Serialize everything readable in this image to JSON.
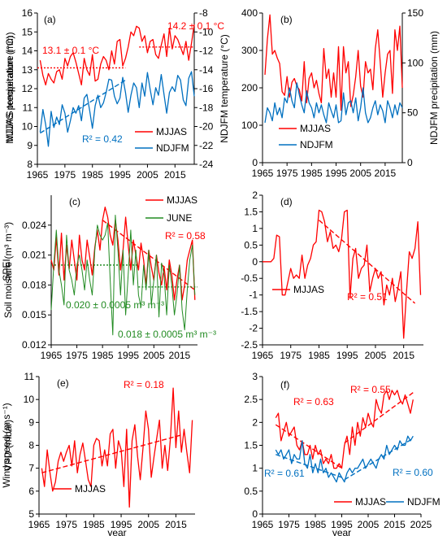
{
  "colors": {
    "red": "#ff0000",
    "blue": "#0070c0",
    "green": "#228b22",
    "axis": "#000000"
  },
  "chart_data": [
    {
      "id": "a",
      "type": "line",
      "panel_label": "(a)",
      "xlabel": "",
      "ylabel": "MJJAS temperature (°C)",
      "ylabel_right": "NDJFM temperature (°C)",
      "xlim": [
        1965,
        2022
      ],
      "ylim": [
        8,
        16
      ],
      "ylim_right": [
        -24,
        -8
      ],
      "xticks": [
        1965,
        1975,
        1985,
        1995,
        2005,
        2015
      ],
      "yticks": [
        8,
        9,
        10,
        11,
        12,
        13,
        14,
        15,
        16
      ],
      "yticks_right": [
        -24,
        -22,
        -20,
        -18,
        -16,
        -14,
        -12,
        -10,
        -8
      ],
      "legend": [
        "MJJAS",
        "NDJFM"
      ],
      "legend_position": "bottom-right",
      "annotations": [
        {
          "text": "13.1 ± 0.1 °C",
          "color": "red"
        },
        {
          "text": "14.2 ± 0.1 °C",
          "color": "red"
        },
        {
          "text": "R² = 0.42",
          "color": "blue"
        }
      ],
      "series": [
        {
          "name": "MJJAS",
          "axis": "left",
          "color": "red",
          "start": 1966,
          "values": [
            13.5,
            12.7,
            12.2,
            12.8,
            12.5,
            12.3,
            12.9,
            13.0,
            12.5,
            13.6,
            13.2,
            13.7,
            13.9,
            13.4,
            12.8,
            12.2,
            13.6,
            13.0,
            12.7,
            13.8,
            12.4,
            12.5,
            13.3,
            13.7,
            13.5,
            13.0,
            14.0,
            13.3,
            14.5,
            14.6,
            13.2,
            13.6,
            14.2,
            15.0,
            14.8,
            15.3,
            15.2,
            14.5,
            14.8,
            13.9,
            14.5,
            14.6,
            13.8,
            13.6,
            14.3,
            14.9,
            13.7,
            15.2,
            14.1,
            14.8,
            14.6,
            14.2,
            13.8,
            14.5,
            13.5,
            14.4,
            15.4
          ]
        },
        {
          "name": "NDJFM",
          "axis": "right",
          "color": "blue",
          "start": 1966,
          "values": [
            -20.6,
            -18.2,
            -19.8,
            -22.1,
            -18.4,
            -20.1,
            -19.0,
            -19.8,
            -17.7,
            -18.6,
            -20.6,
            -19.4,
            -18.0,
            -18.6,
            -17.8,
            -19.4,
            -17.0,
            -16.6,
            -18.3,
            -20.2,
            -17.8,
            -16.7,
            -18.0,
            -17.5,
            -16.4,
            -15.0,
            -15.1,
            -16.8,
            -17.6,
            -17.0,
            -14.8,
            -16.4,
            -18.5,
            -16.7,
            -15.4,
            -15.9,
            -18.0,
            -15.4,
            -16.8,
            -14.3,
            -16.1,
            -17.7,
            -15.9,
            -16.7,
            -14.5,
            -16.6,
            -18.6,
            -16.4,
            -15.8,
            -16.3,
            -14.6,
            -15.1,
            -17.2,
            -17.8,
            -14.9,
            -14.2,
            -16.8
          ]
        }
      ],
      "lines": [
        {
          "kind": "mean",
          "color": "red",
          "style": "dotted",
          "axis": "left",
          "x": [
            1965,
            1997
          ],
          "y": [
            13.1,
            13.1
          ]
        },
        {
          "kind": "mean",
          "color": "red",
          "style": "dotted",
          "axis": "left",
          "x": [
            2002,
            2022
          ],
          "y": [
            14.2,
            14.2
          ]
        },
        {
          "kind": "trend",
          "color": "blue",
          "style": "dashed",
          "axis": "right",
          "x": [
            1966,
            1997
          ],
          "y": [
            -20.7,
            -15.1
          ]
        }
      ]
    },
    {
      "id": "b",
      "type": "line",
      "panel_label": "(b)",
      "xlabel": "",
      "ylabel": "MJJAS precipitation (mm)",
      "ylabel_right": "NDJFM precipitation (mm)",
      "xlim": [
        1965,
        2022
      ],
      "ylim": [
        0,
        400
      ],
      "ylim_right": [
        0,
        150
      ],
      "xticks": [
        1965,
        1975,
        1985,
        1995,
        2005,
        2015
      ],
      "yticks": [
        0,
        100,
        200,
        300,
        400
      ],
      "yticks_right": [
        0,
        50,
        100,
        150
      ],
      "legend": [
        "MJJAS",
        "NDJFM"
      ],
      "legend_position": "bottom-left",
      "annotations": [],
      "series": [
        {
          "name": "MJJAS",
          "axis": "left",
          "color": "red",
          "start": 1966,
          "values": [
            235,
            330,
            395,
            290,
            300,
            280,
            265,
            190,
            180,
            230,
            175,
            215,
            225,
            205,
            195,
            165,
            270,
            160,
            225,
            240,
            200,
            220,
            185,
            160,
            305,
            225,
            250,
            175,
            240,
            175,
            310,
            140,
            310,
            240,
            270,
            150,
            180,
            230,
            300,
            205,
            175,
            270,
            240,
            250,
            195,
            305,
            355,
            270,
            175,
            240,
            290,
            300,
            185,
            355,
            300,
            365,
            200
          ]
        },
        {
          "name": "NDJFM",
          "axis": "right",
          "color": "blue",
          "start": 1966,
          "values": [
            40,
            55,
            50,
            42,
            60,
            48,
            55,
            45,
            65,
            60,
            75,
            62,
            55,
            80,
            68,
            58,
            50,
            72,
            60,
            55,
            45,
            60,
            50,
            58,
            48,
            40,
            60,
            52,
            45,
            58,
            40,
            42,
            70,
            48,
            60,
            62,
            50,
            65,
            42,
            55,
            75,
            50,
            40,
            45,
            55,
            62,
            48,
            58,
            52,
            40,
            62,
            55,
            45,
            58,
            48,
            60,
            55
          ]
        }
      ],
      "lines": []
    },
    {
      "id": "c",
      "type": "line",
      "panel_label": "(c)",
      "xlabel": "",
      "ylabel": "Soil moisture (m³ m⁻³)",
      "xlim": [
        1965,
        2022
      ],
      "ylim": [
        0.012,
        0.027
      ],
      "xticks": [
        1965,
        1975,
        1985,
        1995,
        2005,
        2015
      ],
      "yticks": [
        0.012,
        0.015,
        0.018,
        0.021,
        0.024
      ],
      "ytick_labels": [
        "0.012",
        "0.015",
        "0.018",
        "0.021",
        "0.024"
      ],
      "legend": [
        "MJJAS",
        "JUNE"
      ],
      "legend_position": "top-right",
      "annotations": [
        {
          "text": "R² = 0.58",
          "color": "red"
        },
        {
          "text": "0.020 ± 0.0005 m³ m⁻³",
          "color": "green"
        },
        {
          "text": "0.018 ± 0.0005 m³ m⁻³",
          "color": "green"
        }
      ],
      "series": [
        {
          "name": "MJJAS",
          "color": "red",
          "start": 1965,
          "values": [
            0.0205,
            0.0195,
            0.0228,
            0.019,
            0.0232,
            0.0185,
            0.022,
            0.0196,
            0.0225,
            0.0205,
            0.0185,
            0.023,
            0.0205,
            0.0195,
            0.0225,
            0.0208,
            0.019,
            0.0218,
            0.0235,
            0.0215,
            0.0245,
            0.0258,
            0.0248,
            0.023,
            0.022,
            0.0245,
            0.0225,
            0.0195,
            0.0215,
            0.0248,
            0.022,
            0.0195,
            0.0225,
            0.021,
            0.0195,
            0.0222,
            0.0205,
            0.018,
            0.0215,
            0.0198,
            0.0185,
            0.021,
            0.0192,
            0.018,
            0.0198,
            0.0175,
            0.0205,
            0.019,
            0.0165,
            0.0185,
            0.02,
            0.0165,
            0.018,
            0.0205,
            0.0215,
            0.0225,
            0.0165
          ]
        },
        {
          "name": "JUNE",
          "color": "green",
          "start": 1965,
          "values": [
            0.0155,
            0.02,
            0.0235,
            0.0195,
            0.018,
            0.016,
            0.023,
            0.0195,
            0.0185,
            0.017,
            0.02,
            0.021,
            0.0195,
            0.0175,
            0.0205,
            0.0185,
            0.017,
            0.0215,
            0.024,
            0.023,
            0.0225,
            0.023,
            0.0242,
            0.0185,
            0.013,
            0.025,
            0.0215,
            0.017,
            0.0215,
            0.015,
            0.019,
            0.0235,
            0.018,
            0.0215,
            0.017,
            0.0158,
            0.02,
            0.0175,
            0.0215,
            0.016,
            0.0185,
            0.021,
            0.0148,
            0.0202,
            0.019,
            0.015,
            0.02,
            0.018,
            0.015,
            0.017,
            0.02,
            0.0155,
            0.0135,
            0.0175,
            0.0205,
            0.022,
            0.017
          ]
        }
      ],
      "lines": [
        {
          "kind": "trend",
          "color": "red",
          "style": "dashed",
          "x": [
            1985,
            2021
          ],
          "y": [
            0.0245,
            0.0175
          ]
        },
        {
          "kind": "mean",
          "color": "green",
          "style": "dotted",
          "x": [
            1965,
            1999
          ],
          "y": [
            0.02,
            0.02
          ]
        },
        {
          "kind": "mean",
          "color": "green",
          "style": "dotted",
          "x": [
            1999,
            2022
          ],
          "y": [
            0.0178,
            0.0178
          ]
        }
      ]
    },
    {
      "id": "d",
      "type": "line",
      "panel_label": "(d)",
      "xlabel": "",
      "ylabel": "SPEI",
      "xlim": [
        1965,
        2022
      ],
      "ylim": [
        -2.5,
        2
      ],
      "xticks": [
        1965,
        1975,
        1985,
        1995,
        2005,
        2015
      ],
      "yticks": [
        -2.5,
        -2,
        -1.5,
        -1,
        -0.5,
        0,
        0.5,
        1,
        1.5,
        2
      ],
      "legend": [
        "MJJAS"
      ],
      "legend_position": "bottom-left",
      "annotations": [
        {
          "text": "R² = 0.51",
          "color": "red"
        }
      ],
      "series": [
        {
          "name": "MJJAS",
          "color": "red",
          "start": 1965,
          "values": [
            0,
            0,
            0,
            0,
            0.1,
            0.8,
            0.75,
            -1.0,
            -1.0,
            -0.6,
            -0.2,
            -0.5,
            -0.4,
            -0.5,
            0.2,
            -0.5,
            -0.1,
            0.1,
            0.5,
            0.6,
            1.55,
            1.5,
            1.2,
            0.6,
            0.9,
            0.4,
            0.5,
            0.3,
            0.7,
            1.5,
            1.55,
            -1.1,
            0.1,
            0.4,
            -0.5,
            -0.2,
            -0.1,
            0.5,
            -0.9,
            -0.5,
            -0.2,
            -0.5,
            -0.3,
            -1.3,
            -0.7,
            -1.0,
            -0.5,
            -1.2,
            -0.8,
            -0.3,
            -2.3,
            -0.9,
            0.3,
            0.1,
            0.4,
            1.2,
            -1.0
          ]
        }
      ],
      "lines": [
        {
          "kind": "trend",
          "color": "red",
          "style": "dashed",
          "x": [
            1985,
            2019
          ],
          "y": [
            1.25,
            -1.25
          ]
        }
      ]
    },
    {
      "id": "e",
      "type": "line",
      "panel_label": "(e)",
      "xlabel": "year",
      "ylabel": "VPD (mbar)",
      "xlim": [
        1965,
        2022
      ],
      "ylim": [
        5,
        11
      ],
      "xticks": [
        1965,
        1975,
        1985,
        1995,
        2005,
        2015
      ],
      "yticks": [
        5,
        6,
        7,
        8,
        9,
        10,
        11
      ],
      "legend": [
        "MJJAS"
      ],
      "legend_position": "bottom-left",
      "annotations": [
        {
          "text": "R² = 0.18",
          "color": "red"
        }
      ],
      "series": [
        {
          "name": "MJJAS",
          "color": "red",
          "start": 1966,
          "values": [
            7.0,
            6.2,
            7.8,
            6.8,
            6.0,
            6.4,
            7.3,
            7.7,
            7.3,
            7.7,
            8.0,
            7.1,
            8.2,
            6.8,
            7.6,
            8.1,
            7.3,
            6.5,
            6.2,
            8.0,
            8.3,
            8.2,
            7.1,
            7.8,
            7.1,
            8.5,
            8.7,
            7.0,
            8.2,
            7.8,
            6.2,
            8.7,
            5.3,
            8.2,
            8.9,
            7.5,
            6.5,
            7.9,
            9.5,
            8.7,
            6.6,
            7.5,
            8.3,
            9.1,
            7.0,
            8.0,
            6.9,
            8.3,
            10.5,
            7.9,
            9.5,
            7.7,
            8.7,
            7.7,
            6.8,
            9.1
          ]
        }
      ],
      "lines": [
        {
          "kind": "trend",
          "color": "red",
          "style": "dashed",
          "x": [
            1966,
            2017
          ],
          "y": [
            6.8,
            8.45
          ]
        }
      ]
    },
    {
      "id": "f",
      "type": "line",
      "panel_label": "(f)",
      "xlabel": "year",
      "ylabel": "Wind speed (m s⁻¹)",
      "xlim": [
        1965,
        2025
      ],
      "ylim": [
        0,
        3
      ],
      "xticks": [
        1965,
        1975,
        1985,
        1995,
        2005,
        2015,
        2025
      ],
      "yticks": [
        0,
        0.5,
        1,
        1.5,
        2,
        2.5,
        3
      ],
      "legend": [
        "MJJAS",
        "NDJFM"
      ],
      "legend_position": "bottom",
      "annotations": [
        {
          "text": "R² = 0.63",
          "color": "red"
        },
        {
          "text": "R² = 0.55",
          "color": "red"
        },
        {
          "text": "R² = 0.61",
          "color": "blue"
        },
        {
          "text": "R² = 0.60",
          "color": "blue"
        }
      ],
      "series": [
        {
          "name": "MJJAS",
          "color": "red",
          "start": 1970,
          "values": [
            2.1,
            2.2,
            1.6,
            1.8,
            2.0,
            1.7,
            1.8,
            1.9,
            1.5,
            1.4,
            1.6,
            1.3,
            1.3,
            1.5,
            1.2,
            1.5,
            1.3,
            1.4,
            1.1,
            1.2,
            1.1,
            1.3,
            1.0,
            1.0,
            1.1,
            1.0,
            1.5,
            1.7,
            1.3,
            1.9,
            1.5,
            2.0,
            1.7,
            2.1,
            1.9,
            2.2,
            2.0,
            1.9,
            2.5,
            2.3,
            2.2,
            2.6,
            2.7,
            2.5,
            2.7,
            2.6,
            2.7,
            2.5,
            2.4,
            2.6,
            2.4,
            2.2,
            2.5
          ]
        },
        {
          "name": "NDJFM",
          "color": "blue",
          "start": 1970,
          "values": [
            1.4,
            1.3,
            1.4,
            1.2,
            1.3,
            1.4,
            1.1,
            1.3,
            1.2,
            1.2,
            1.6,
            1.1,
            1.0,
            1.3,
            0.9,
            1.1,
            0.9,
            1.2,
            0.9,
            1.0,
            0.8,
            0.9,
            0.8,
            0.7,
            0.9,
            0.8,
            0.7,
            0.9,
            1.0,
            0.9,
            1.0,
            1.0,
            1.1,
            1.2,
            1.0,
            1.1,
            1.2,
            1.1,
            1.0,
            1.2,
            1.3,
            1.2,
            1.5,
            1.3,
            1.4,
            1.5,
            1.4,
            1.6,
            1.5,
            1.5,
            1.7,
            1.6,
            1.7
          ]
        }
      ],
      "lines": [
        {
          "kind": "trend",
          "color": "red",
          "style": "dashed",
          "x": [
            1970,
            1995
          ],
          "y": [
            1.95,
            1.0
          ]
        },
        {
          "kind": "trend",
          "color": "red",
          "style": "dashed",
          "x": [
            1996,
            2022
          ],
          "y": [
            1.55,
            2.65
          ]
        },
        {
          "kind": "trend",
          "color": "blue",
          "style": "dashed",
          "x": [
            1970,
            1995
          ],
          "y": [
            1.3,
            0.8
          ]
        },
        {
          "kind": "trend",
          "color": "blue",
          "style": "dashed",
          "x": [
            1996,
            2022
          ],
          "y": [
            0.75,
            1.65
          ]
        }
      ]
    }
  ]
}
